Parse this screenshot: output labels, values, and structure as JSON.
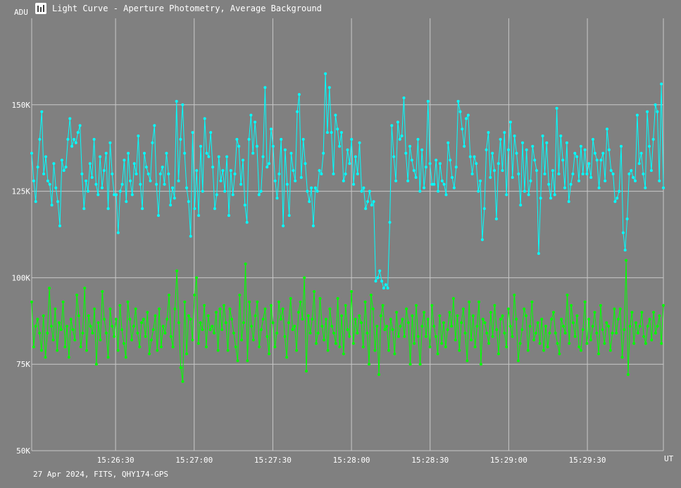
{
  "window": {
    "title": "Light Curve - Aperture Photometry, Average Background",
    "icon": "chart-app-icon"
  },
  "footer": {
    "info": "27 Apr 2024, FITS, QHY174-GPS"
  },
  "colors": {
    "background": "#808080",
    "grid": "#c8c8c8",
    "series_cyan": "#00ffff",
    "series_green": "#00ff00",
    "text": "#ffffff"
  },
  "chart_data": {
    "type": "line",
    "title": "Light Curve - Aperture Photometry, Average Background",
    "ylabel": "ADU",
    "xlabel": "UT",
    "ylim": [
      50000,
      175000
    ],
    "xlim": [
      "15:25:58",
      "15:29:59"
    ],
    "grid": true,
    "y_ticks": [
      {
        "value": 50000,
        "label": "50K"
      },
      {
        "value": 75000,
        "label": "75K"
      },
      {
        "value": 100000,
        "label": "100K"
      },
      {
        "value": 125000,
        "label": "125K"
      },
      {
        "value": 150000,
        "label": "150K"
      }
    ],
    "x_ticks": [
      {
        "value": "15:26:30",
        "label": "15:26:30"
      },
      {
        "value": "15:27:00",
        "label": "15:27:00"
      },
      {
        "value": "15:27:30",
        "label": "15:27:30"
      },
      {
        "value": "15:28:00",
        "label": "15:28:00"
      },
      {
        "value": "15:28:30",
        "label": "15:28:30"
      },
      {
        "value": "15:29:00",
        "label": "15:29:00"
      },
      {
        "value": "15:29:30",
        "label": "15:29:30"
      }
    ],
    "series": [
      {
        "color": "#00ffff",
        "x_start": "15:25:58",
        "x_end": "15:29:59",
        "values": [
          136000,
          128000,
          122000,
          132000,
          140000,
          148000,
          130000,
          135000,
          128000,
          127000,
          121000,
          133000,
          126000,
          122000,
          115000,
          134000,
          131000,
          132000,
          140000,
          146000,
          138000,
          140000,
          139000,
          142000,
          144000,
          130000,
          120000,
          128000,
          125000,
          133000,
          129000,
          140000,
          127000,
          124000,
          135000,
          126000,
          131000,
          136000,
          120000,
          139000,
          130000,
          124000,
          124000,
          113000,
          125000,
          127000,
          134000,
          122000,
          136000,
          128000,
          124000,
          133000,
          130000,
          141000,
          127000,
          120000,
          136000,
          132000,
          130000,
          128000,
          139000,
          144000,
          127000,
          118000,
          130000,
          132000,
          127000,
          136000,
          130000,
          121000,
          126000,
          123000,
          151000,
          128000,
          140000,
          150000,
          136000,
          126000,
          122000,
          112000,
          142000,
          120000,
          131000,
          118000,
          138000,
          125000,
          146000,
          136000,
          135000,
          142000,
          132000,
          120000,
          124000,
          135000,
          128000,
          131000,
          125000,
          135000,
          118000,
          131000,
          124000,
          130000,
          140000,
          138000,
          127000,
          134000,
          121000,
          116000,
          140000,
          147000,
          136000,
          145000,
          138000,
          124000,
          125000,
          135000,
          155000,
          132000,
          133000,
          143000,
          138000,
          128000,
          123000,
          130000,
          140000,
          115000,
          137000,
          127000,
          118000,
          136000,
          131000,
          128000,
          148000,
          153000,
          129000,
          140000,
          133000,
          125000,
          122000,
          126000,
          115000,
          126000,
          125000,
          131000,
          130000,
          136000,
          159000,
          142000,
          155000,
          142000,
          130000,
          147000,
          143000,
          138000,
          142000,
          128000,
          130000,
          137000,
          133000,
          140000,
          127000,
          135000,
          130000,
          139000,
          125000,
          126000,
          120000,
          122000,
          125000,
          121000,
          122000,
          99000,
          100000,
          102000,
          99000,
          97000,
          98000,
          97000,
          116000,
          144000,
          135000,
          128000,
          145000,
          140000,
          141000,
          152000,
          136000,
          128000,
          138000,
          134000,
          131000,
          129000,
          140000,
          125000,
          137000,
          126000,
          132000,
          151000,
          133000,
          127000,
          127000,
          134000,
          125000,
          133000,
          128000,
          127000,
          124000,
          139000,
          134000,
          129000,
          126000,
          132000,
          151000,
          148000,
          143000,
          138000,
          146000,
          147000,
          135000,
          130000,
          135000,
          133000,
          125000,
          128000,
          111000,
          120000,
          137000,
          142000,
          129000,
          136000,
          131000,
          117000,
          133000,
          140000,
          131000,
          142000,
          124000,
          137000,
          145000,
          129000,
          141000,
          136000,
          130000,
          121000,
          139000,
          125000,
          137000,
          124000,
          128000,
          138000,
          134000,
          131000,
          107000,
          123000,
          141000,
          130000,
          139000,
          127000,
          123000,
          131000,
          124000,
          149000,
          130000,
          141000,
          134000,
          126000,
          139000,
          122000,
          127000,
          130000,
          136000,
          135000,
          128000,
          138000,
          130000,
          137000,
          130000,
          133000,
          129000,
          140000,
          136000,
          134000,
          126000,
          134000,
          136000,
          128000,
          143000,
          137000,
          131000,
          130000,
          122000,
          123000,
          125000,
          138000,
          113000,
          108000,
          117000,
          130000,
          131000,
          129000,
          128000,
          147000,
          133000,
          136000,
          130000,
          126000,
          148000,
          138000,
          131000,
          140000,
          150000,
          148000,
          128000,
          156000,
          126000
        ]
      },
      {
        "color": "#00ff00",
        "x_start": "15:25:58",
        "x_end": "15:29:59",
        "values": [
          93000,
          80000,
          86000,
          88000,
          84000,
          79000,
          89000,
          77000,
          84000,
          97000,
          86000,
          82000,
          91000,
          79000,
          87000,
          85000,
          93000,
          80000,
          86000,
          77000,
          88000,
          85000,
          82000,
          95000,
          89000,
          80000,
          84000,
          97000,
          79000,
          89000,
          86000,
          84000,
          91000,
          75000,
          87000,
          82000,
          96000,
          88000,
          84000,
          77000,
          91000,
          86000,
          83000,
          88000,
          79000,
          92000,
          85000,
          81000,
          77000,
          93000,
          88000,
          82000,
          86000,
          91000,
          84000,
          80000,
          87000,
          88000,
          83000,
          90000,
          78000,
          82000,
          85000,
          89000,
          79000,
          91000,
          80000,
          86000,
          84000,
          88000,
          95000,
          83000,
          80000,
          91000,
          102000,
          87000,
          74000,
          70000,
          93000,
          78000,
          89000,
          88000,
          82000,
          95000,
          100000,
          81000,
          87000,
          85000,
          92000,
          80000,
          89000,
          85000,
          86000,
          84000,
          90000,
          79000,
          91000,
          85000,
          92000,
          87000,
          79000,
          91000,
          88000,
          84000,
          80000,
          76000,
          95000,
          82000,
          87000,
          104000,
          76000,
          93000,
          86000,
          82000,
          89000,
          93000,
          80000,
          85000,
          88000,
          91000,
          83000,
          78000,
          92000,
          87000,
          80000,
          84000,
          93000,
          88000,
          91000,
          83000,
          77000,
          87000,
          94000,
          85000,
          86000,
          79000,
          90000,
          93000,
          88000,
          100000,
          73000,
          89000,
          84000,
          88000,
          96000,
          81000,
          84000,
          94000,
          86000,
          82000,
          88000,
          79000,
          91000,
          86000,
          84000,
          81000,
          94000,
          80000,
          89000,
          78000,
          92000,
          85000,
          83000,
          96000,
          81000,
          88000,
          84000,
          89000,
          87000,
          80000,
          93000,
          84000,
          75000,
          95000,
          91000,
          79000,
          86000,
          72000,
          89000,
          92000,
          85000,
          86000,
          79000,
          88000,
          85000,
          78000,
          90000,
          83000,
          86000,
          88000,
          83000,
          91000,
          87000,
          75000,
          89000,
          81000,
          92000,
          83000,
          75000,
          86000,
          90000,
          83000,
          88000,
          80000,
          92000,
          86000,
          83000,
          78000,
          89000,
          81000,
          87000,
          80000,
          85000,
          90000,
          86000,
          94000,
          82000,
          89000,
          79000,
          87000,
          91000,
          84000,
          76000,
          93000,
          82000,
          89000,
          80000,
          86000,
          93000,
          75000,
          88000,
          87000,
          84000,
          81000,
          90000,
          83000,
          92000,
          85000,
          78000,
          88000,
          89000,
          84000,
          80000,
          91000,
          86000,
          83000,
          95000,
          88000,
          76000,
          81000,
          85000,
          91000,
          89000,
          79000,
          86000,
          93000,
          82000,
          84000,
          87000,
          81000,
          88000,
          79000,
          86000,
          80000,
          84000,
          88000,
          90000,
          84000,
          81000,
          78000,
          88000,
          86000,
          84000,
          95000,
          81000,
          92000,
          87000,
          83000,
          89000,
          80000,
          79000,
          85000,
          93000,
          81000,
          88000,
          82000,
          86000,
          90000,
          84000,
          78000,
          92000,
          85000,
          81000,
          87000,
          86000,
          79000,
          84000,
          91000,
          84000,
          88000,
          91000,
          77000,
          85000,
          105000,
          72000,
          86000,
          90000,
          81000,
          87000,
          84000,
          86000,
          90000,
          83000,
          81000,
          86000,
          88000,
          82000,
          90000,
          84000,
          86000,
          89000,
          81000,
          92000
        ]
      }
    ]
  }
}
